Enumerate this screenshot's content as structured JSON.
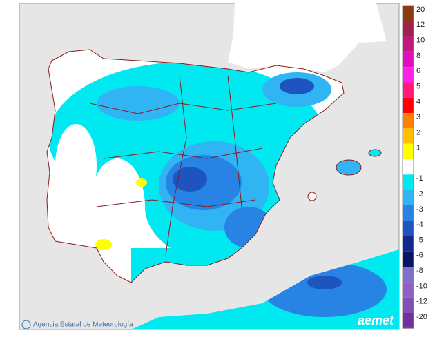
{
  "footer": {
    "credit": "Agencia Estatal de Meteorología",
    "logo": "aemet"
  },
  "legend": {
    "items": [
      {
        "label": 20,
        "color": "#8b3a12"
      },
      {
        "label": 12,
        "color": "#a0204e"
      },
      {
        "label": 10,
        "color": "#c0187e"
      },
      {
        "label": 8,
        "color": "#e010c0"
      },
      {
        "label": 6,
        "color": "#ff20e8"
      },
      {
        "label": 5,
        "color": "#ff1a7a"
      },
      {
        "label": 4,
        "color": "#ff0000"
      },
      {
        "label": 3,
        "color": "#ff8000"
      },
      {
        "label": 2,
        "color": "#ffc000"
      },
      {
        "label": 1,
        "color": "#ffff00"
      },
      {
        "label": -1,
        "color": "#00e8f0"
      },
      {
        "label": -2,
        "color": "#30b4f4"
      },
      {
        "label": -3,
        "color": "#2884e4"
      },
      {
        "label": -4,
        "color": "#1e54c0"
      },
      {
        "label": -5,
        "color": "#122a8c"
      },
      {
        "label": -6,
        "color": "#0a1460"
      },
      {
        "label": -8,
        "color": "#8070cc"
      },
      {
        "label": -10,
        "color": "#9060c4"
      },
      {
        "label": -12,
        "color": "#8050b4"
      },
      {
        "label": -20,
        "color": "#7030a0"
      }
    ]
  }
}
